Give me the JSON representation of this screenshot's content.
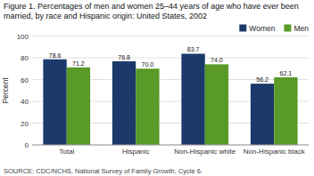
{
  "chart_data": {
    "type": "bar",
    "title": "Figure 1. Percentages of men and women 25–44 years of age who have ever been married, by race and Hispanic origin: United States, 2002",
    "source": "SOURCE: CDC/NCHS, National Survey of Family Growth, Cycle 6.",
    "ylabel": "Percent",
    "categories": [
      "Total",
      "Hispanic",
      "Non-Hispanic white",
      "Non-Hispanic black"
    ],
    "series": [
      {
        "name": "Women",
        "color": "#1b3a6b",
        "values": [
          78.6,
          76.8,
          83.7,
          56.2
        ]
      },
      {
        "name": "Men",
        "color": "#5a9a28",
        "values": [
          71.2,
          70.0,
          74.0,
          62.1
        ],
        "value_labels": [
          "71.2",
          "70.0",
          "74.0",
          "62.1"
        ]
      }
    ],
    "ylim": [
      0,
      100
    ],
    "yticks": [
      0,
      20,
      40,
      60,
      80,
      100
    ],
    "grid": true,
    "legend": "upper right",
    "data_labels": true
  }
}
